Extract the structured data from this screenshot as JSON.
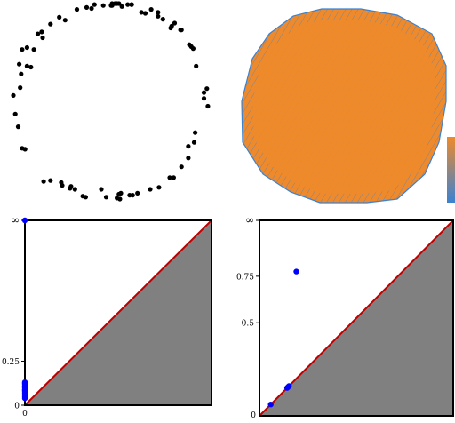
{
  "chart_data": [
    {
      "type": "scatter",
      "panel": "point-cloud",
      "title": "",
      "marker_color": "#000000",
      "x": [
        -0.53,
        -0.62,
        -0.26,
        -0.05,
        -0.29,
        -0.37,
        -0.91,
        -1.0,
        -0.98,
        -0.71,
        -0.86,
        -0.47,
        -0.2,
        -0.17,
        0.79,
        0.82,
        0.95,
        0.99,
        0.84,
        0.62,
        0.49,
        0.27,
        0.41,
        -0.86,
        0.01,
        -0.91,
        0.86,
        0.31,
        -0.35,
        0.61,
        0.95,
        0.87,
        0.79,
        -0.69,
        -0.95,
        0.48,
        0.72,
        -0.79,
        0.98,
        -0.82,
        0.72,
        0.09,
        0.22,
        0.85,
        0.17,
        -0.92,
        -0.41,
        0.8,
        0.21,
        -0.94,
        -0.1,
        0.64,
        -0.75,
        0.0,
        0.06,
        0.48,
        0.19,
        0.53,
        -0.25,
        0.4,
        0.08,
        -0.93,
        0.6,
        0.35,
        0.06,
        0.1,
        0.21,
        -0.5,
        -0.62,
        -0.42,
        0.08,
        -0.08,
        0.04,
        0.11,
        -0.51,
        -0.88,
        -0.7,
        0.65,
        0.71,
        0.01
      ],
      "y": [
        0.86,
        0.79,
        -0.98,
        -0.98,
        -0.97,
        -0.9,
        0.53,
        0.06,
        -0.13,
        0.71,
        0.55,
        0.83,
        0.95,
        0.99,
        -0.46,
        0.56,
        0.09,
        -0.05,
        0.54,
        0.77,
        -0.88,
        -0.94,
        0.94,
        0.36,
        0.98,
        -0.48,
        -0.32,
        0.91,
        0.94,
        0.75,
        0.03,
        0.36,
        -0.58,
        -0.82,
        -0.26,
        0.87,
        0.73,
        0.53,
        0.13,
        0.35,
        -0.67,
        -1.0,
        -0.96,
        -0.42,
        0.99,
        0.28,
        -0.87,
        0.58,
        0.99,
        0.38,
        -0.9,
        -0.78,
        0.69,
        0.98,
        1.0,
        0.91,
        -0.96,
        0.84,
        0.96,
        -0.9,
        -0.95,
        0.14,
        -0.78,
        0.9,
        -0.99,
        -0.94,
        0.99,
        -0.86,
        -0.81,
        -0.89,
        1.0,
        0.98,
        1.0,
        0.97,
        -0.83,
        -0.49,
        0.65,
        0.8,
        0.73,
        1.0
      ]
    },
    {
      "type": "other",
      "panel": "complex-filtration",
      "title": "",
      "polygon_fill": "#ee8a2b",
      "edge_color": "#3b82d2",
      "colorbar_stops": [
        "#3b82d2",
        "#ee8a2b"
      ]
    },
    {
      "type": "scatter",
      "panel": "persistence-diagram-h0",
      "title": "",
      "marker_color": "#0000ff",
      "diagonal_color": "#c00000",
      "shade_color": "#808080",
      "xlim": [
        0,
        1.05
      ],
      "ylim": [
        0,
        1.05
      ],
      "x_tick_labels": [
        "0"
      ],
      "y_tick_labels": [
        "0",
        "0.25",
        "∞"
      ],
      "infinity_label": "∞",
      "points": [
        {
          "birth": 0,
          "death": "inf"
        },
        {
          "birth": 0,
          "death": 0.04
        },
        {
          "birth": 0,
          "death": 0.05
        },
        {
          "birth": 0,
          "death": 0.06
        },
        {
          "birth": 0,
          "death": 0.07
        },
        {
          "birth": 0,
          "death": 0.08
        },
        {
          "birth": 0,
          "death": 0.085
        },
        {
          "birth": 0,
          "death": 0.09
        },
        {
          "birth": 0,
          "death": 0.1
        },
        {
          "birth": 0,
          "death": 0.105
        },
        {
          "birth": 0,
          "death": 0.11
        },
        {
          "birth": 0,
          "death": 0.12
        },
        {
          "birth": 0,
          "death": 0.125
        },
        {
          "birth": 0,
          "death": 0.13
        }
      ]
    },
    {
      "type": "scatter",
      "panel": "persistence-diagram-h1",
      "title": "",
      "marker_color": "#0000ff",
      "diagonal_color": "#c00000",
      "shade_color": "#808080",
      "xlim": [
        0,
        1.05
      ],
      "ylim": [
        0,
        1.05
      ],
      "x_tick_labels": [
        "0"
      ],
      "y_tick_labels": [
        "0.5",
        "0.75",
        "∞"
      ],
      "infinity_label": "∞",
      "points": [
        {
          "birth": 0.061,
          "death": 0.061
        },
        {
          "birth": 0.15,
          "death": 0.15
        },
        {
          "birth": 0.155,
          "death": 0.155
        },
        {
          "birth": 0.16,
          "death": 0.16
        },
        {
          "birth": 0.2,
          "death": 0.775
        }
      ]
    }
  ]
}
